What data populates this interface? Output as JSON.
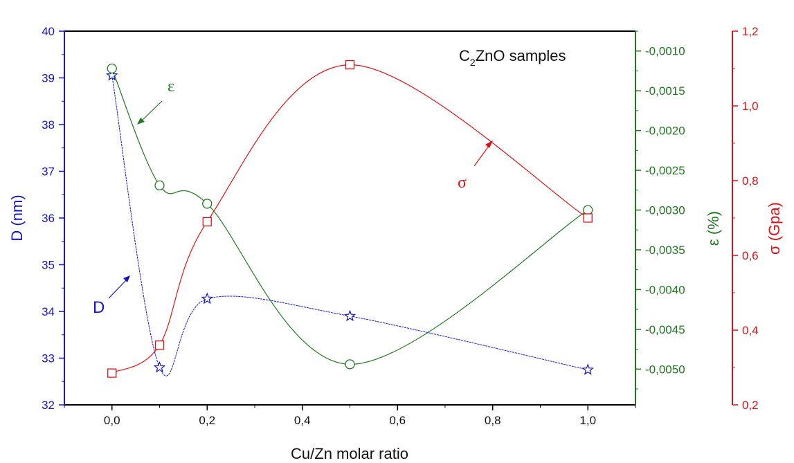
{
  "chart_data": {
    "type": "line",
    "title_main": "C",
    "title_sub": "2",
    "title_rest": "ZnO samples",
    "xlabel": "Cu/Zn molar ratio",
    "xlim": [
      -0.1,
      1.1
    ],
    "x_ticks": [
      "0,0",
      "0,2",
      "0,4",
      "0,6",
      "0,8",
      "1,0"
    ],
    "x_tick_values": [
      0.0,
      0.2,
      0.4,
      0.6,
      0.8,
      1.0
    ],
    "axes": {
      "D": {
        "label": "D (nm)",
        "color": "#1515c8",
        "ylim": [
          32,
          40
        ],
        "ticks": [
          "32",
          "33",
          "34",
          "35",
          "36",
          "37",
          "38",
          "39",
          "40"
        ],
        "tick_values": [
          32,
          33,
          34,
          35,
          36,
          37,
          38,
          39,
          40
        ]
      },
      "epsilon": {
        "label": "ε (%)",
        "color": "#1f7a1f",
        "ylim": [
          -0.00545,
          -0.00075
        ],
        "ticks": [
          "-0,0010",
          "-0,0015",
          "-0,0020",
          "-0,0025",
          "-0,0030",
          "-0,0035",
          "-0,0040",
          "-0,0045",
          "-0,0050"
        ],
        "tick_values": [
          -0.001,
          -0.0015,
          -0.002,
          -0.0025,
          -0.003,
          -0.0035,
          -0.004,
          -0.0045,
          -0.005
        ]
      },
      "sigma": {
        "label": "σ (Gpa)",
        "color": "#dd1111",
        "ylim": [
          0.2,
          1.2
        ],
        "ticks": [
          "0,2",
          "0,4",
          "0,6",
          "0,8",
          "1,0",
          "1,2"
        ],
        "tick_values": [
          0.2,
          0.4,
          0.6,
          0.8,
          1.0,
          1.2
        ]
      }
    },
    "series": [
      {
        "name": "D",
        "axis": "D",
        "marker": "star",
        "x": [
          0.0,
          0.1,
          0.2,
          0.5,
          1.0
        ],
        "y": [
          39.05,
          32.8,
          34.27,
          33.9,
          32.75
        ]
      },
      {
        "name": "ε",
        "axis": "epsilon",
        "marker": "circle",
        "x": [
          0.0,
          0.1,
          0.2,
          0.5,
          1.0
        ],
        "y": [
          -0.00122,
          -0.00269,
          -0.00292,
          -0.00494,
          -0.003
        ]
      },
      {
        "name": "σ",
        "axis": "sigma",
        "marker": "square",
        "x": [
          0.0,
          0.1,
          0.2,
          0.5,
          1.0
        ],
        "y": [
          0.285,
          0.36,
          0.69,
          1.11,
          0.7
        ]
      }
    ],
    "annotations": [
      {
        "text": "D",
        "series": "D"
      },
      {
        "text": "ε",
        "series": "ε"
      },
      {
        "text": "σ",
        "series": "σ"
      }
    ],
    "grid": false
  }
}
